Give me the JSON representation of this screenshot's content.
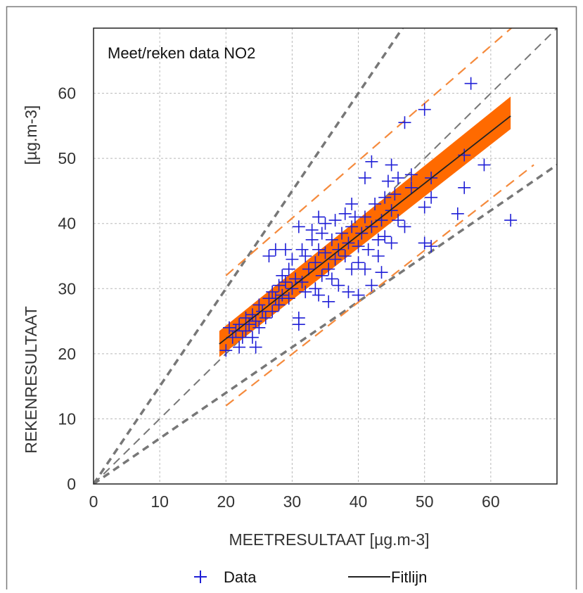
{
  "chart_data": {
    "type": "scatter",
    "title": "Meet/reken data NO2",
    "xlabel": "MEETRESULTAAT [µg.m-3]",
    "ylabel": "REKENRESULTAAT",
    "y_unit_label": "[µg.m-3]",
    "xlim": [
      0,
      70
    ],
    "ylim": [
      0,
      70
    ],
    "xticks": [
      0,
      10,
      20,
      30,
      40,
      50,
      60
    ],
    "yticks": [
      0,
      10,
      20,
      30,
      40,
      50,
      60
    ],
    "grid": true,
    "legend_position": "bottom",
    "colors": {
      "data": "#1f1fd6",
      "fit": "#222222",
      "band": "#ff6a00",
      "band_edge": "#f58a3c",
      "reference": "#777777",
      "grid": "#b8b8b8"
    },
    "series": [
      {
        "name": "Data",
        "kind": "scatter",
        "marker": "+",
        "points": [
          [
            20,
            20.5
          ],
          [
            20.5,
            24
          ],
          [
            21,
            22.5
          ],
          [
            21.5,
            23.5
          ],
          [
            22,
            21
          ],
          [
            22,
            24.5
          ],
          [
            22.5,
            22.5
          ],
          [
            23,
            25.5
          ],
          [
            23,
            23.5
          ],
          [
            23.5,
            24.5
          ],
          [
            24,
            26
          ],
          [
            24,
            22.5
          ],
          [
            24.5,
            21
          ],
          [
            24.5,
            25
          ],
          [
            25,
            27.5
          ],
          [
            25,
            24
          ],
          [
            25.5,
            26.5
          ],
          [
            26,
            25.5
          ],
          [
            26.5,
            28.5
          ],
          [
            26.5,
            35
          ],
          [
            27,
            26.5
          ],
          [
            27,
            29.5
          ],
          [
            27.5,
            28.5
          ],
          [
            27.5,
            36
          ],
          [
            28,
            30.5
          ],
          [
            28,
            27.5
          ],
          [
            28.5,
            32
          ],
          [
            28.5,
            29
          ],
          [
            29,
            36
          ],
          [
            29,
            31
          ],
          [
            29.5,
            28.5
          ],
          [
            29.5,
            33
          ],
          [
            30,
            34.5
          ],
          [
            30,
            30
          ],
          [
            30.5,
            31.5
          ],
          [
            31,
            39.5
          ],
          [
            31,
            25.5
          ],
          [
            31,
            24.5
          ],
          [
            31.5,
            36
          ],
          [
            31.5,
            31
          ],
          [
            32,
            29.5
          ],
          [
            32,
            35
          ],
          [
            32.5,
            33
          ],
          [
            33,
            37.5
          ],
          [
            33,
            39
          ],
          [
            33.5,
            30
          ],
          [
            33.5,
            34
          ],
          [
            34,
            41
          ],
          [
            34,
            36
          ],
          [
            34,
            29
          ],
          [
            34.5,
            32
          ],
          [
            34.5,
            38.5
          ],
          [
            35,
            35.5
          ],
          [
            35,
            40
          ],
          [
            35.5,
            33
          ],
          [
            35.5,
            28
          ],
          [
            36,
            37.5
          ],
          [
            36,
            31.5
          ],
          [
            36.5,
            34.5
          ],
          [
            36.5,
            40.5
          ],
          [
            37,
            36
          ],
          [
            37,
            30.5
          ],
          [
            37.5,
            38.5
          ],
          [
            38,
            41.5
          ],
          [
            38,
            35
          ],
          [
            38.5,
            37
          ],
          [
            38.5,
            29.5
          ],
          [
            39,
            43
          ],
          [
            39,
            39.5
          ],
          [
            39,
            33
          ],
          [
            39.5,
            41
          ],
          [
            40,
            36.5
          ],
          [
            40,
            34
          ],
          [
            40,
            29
          ],
          [
            40.5,
            38.5
          ],
          [
            41,
            41
          ],
          [
            41,
            47
          ],
          [
            41,
            33
          ],
          [
            41.5,
            36
          ],
          [
            42,
            49.5
          ],
          [
            42,
            39.5
          ],
          [
            42,
            30.5
          ],
          [
            42.5,
            43
          ],
          [
            43,
            37.5
          ],
          [
            43,
            35
          ],
          [
            43.5,
            40.5
          ],
          [
            43.5,
            32.5
          ],
          [
            44,
            44
          ],
          [
            44,
            38
          ],
          [
            44.5,
            46.5
          ],
          [
            45,
            49
          ],
          [
            45,
            42
          ],
          [
            45,
            37
          ],
          [
            45.5,
            44.5
          ],
          [
            46,
            47
          ],
          [
            46,
            40.5
          ],
          [
            47,
            55.5
          ],
          [
            47,
            39.5
          ],
          [
            48,
            47.5
          ],
          [
            48,
            45.5
          ],
          [
            50,
            57.5
          ],
          [
            50,
            42.5
          ],
          [
            50,
            37
          ],
          [
            51,
            47
          ],
          [
            51,
            44
          ],
          [
            51,
            36.5
          ],
          [
            55,
            41.5
          ],
          [
            56,
            50.5
          ],
          [
            56,
            45.5
          ],
          [
            57,
            61.5
          ],
          [
            59,
            49
          ],
          [
            63,
            40.5
          ]
        ]
      },
      {
        "name": "Fitlijn",
        "kind": "line",
        "x": [
          19,
          63
        ],
        "y": [
          21.5,
          56.5
        ]
      }
    ],
    "confidence_band": {
      "x": [
        19,
        63
      ],
      "lower": [
        19.5,
        54.5
      ],
      "upper": [
        23.5,
        59.5
      ]
    },
    "prediction_lines": {
      "x": [
        20,
        66.5
      ],
      "upper": [
        32,
        73
      ],
      "lower": [
        12,
        49
      ]
    },
    "reference_lines": [
      {
        "slope": 1.5,
        "style": "thick-dash"
      },
      {
        "slope": 1.0,
        "style": "thin-dash"
      },
      {
        "slope": 0.7,
        "style": "thick-dash"
      }
    ],
    "legend": [
      {
        "label": "Data",
        "symbol": "+"
      },
      {
        "label": "Fitlijn",
        "symbol": "line"
      }
    ]
  }
}
